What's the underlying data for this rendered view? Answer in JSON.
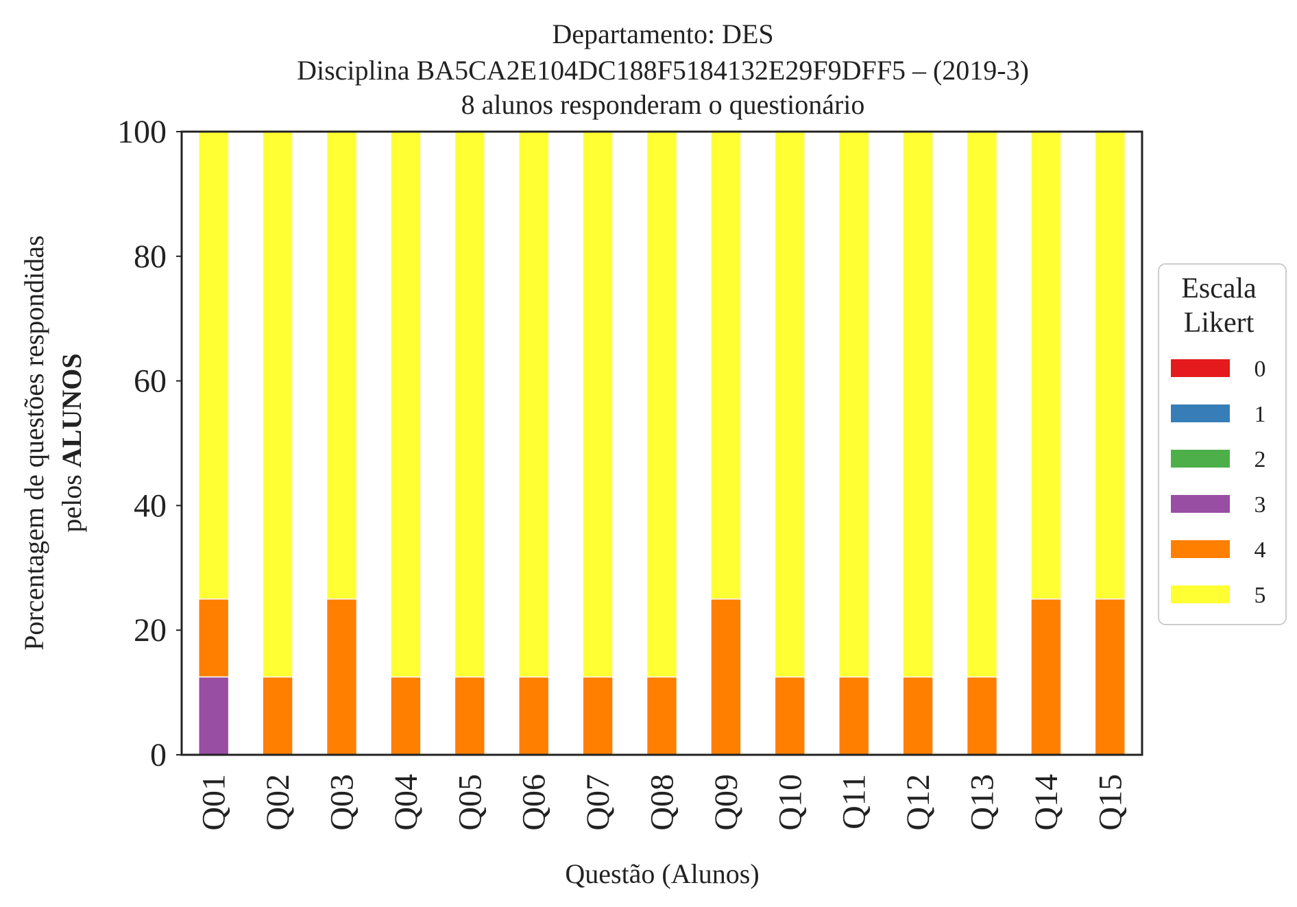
{
  "chart_data": {
    "type": "bar",
    "stacked": true,
    "title_lines": [
      "Departamento: DES",
      "Disciplina BA5CA2E104DC188F5184132E29F9DFF5 – (2019-3)",
      "8 alunos responderam o questionário"
    ],
    "xlabel": "Questão (Alunos)",
    "ylabel_line1": "Porcentagem de questões respondidas",
    "ylabel_line2_prefix": "pelos ",
    "ylabel_line2_bold": "ALUNOS",
    "ylim": [
      0,
      100
    ],
    "yticks": [
      "0",
      "20",
      "40",
      "60",
      "80",
      "100"
    ],
    "categories": [
      "Q01",
      "Q02",
      "Q03",
      "Q04",
      "Q05",
      "Q06",
      "Q07",
      "Q08",
      "Q09",
      "Q10",
      "Q11",
      "Q12",
      "Q13",
      "Q14",
      "Q15"
    ],
    "legend_title_lines": [
      "Escala",
      "Likert"
    ],
    "legend_position": "right",
    "series": [
      {
        "name": "0",
        "color": "#e41a1c",
        "values": [
          0,
          0,
          0,
          0,
          0,
          0,
          0,
          0,
          0,
          0,
          0,
          0,
          0,
          0,
          0
        ]
      },
      {
        "name": "1",
        "color": "#377eb8",
        "values": [
          0,
          0,
          0,
          0,
          0,
          0,
          0,
          0,
          0,
          0,
          0,
          0,
          0,
          0,
          0
        ]
      },
      {
        "name": "2",
        "color": "#4daf4a",
        "values": [
          0,
          0,
          0,
          0,
          0,
          0,
          0,
          0,
          0,
          0,
          0,
          0,
          0,
          0,
          0
        ]
      },
      {
        "name": "3",
        "color": "#984ea3",
        "values": [
          12.5,
          0,
          0,
          0,
          0,
          0,
          0,
          0,
          0,
          0,
          0,
          0,
          0,
          0,
          0
        ]
      },
      {
        "name": "4",
        "color": "#ff7f00",
        "values": [
          12.5,
          12.5,
          25,
          12.5,
          12.5,
          12.5,
          12.5,
          12.5,
          25,
          12.5,
          12.5,
          12.5,
          12.5,
          25,
          25
        ]
      },
      {
        "name": "5",
        "color": "#ffff33",
        "values": [
          75,
          87.5,
          75,
          87.5,
          87.5,
          87.5,
          87.5,
          87.5,
          75,
          87.5,
          87.5,
          87.5,
          87.5,
          75,
          75
        ]
      }
    ]
  }
}
